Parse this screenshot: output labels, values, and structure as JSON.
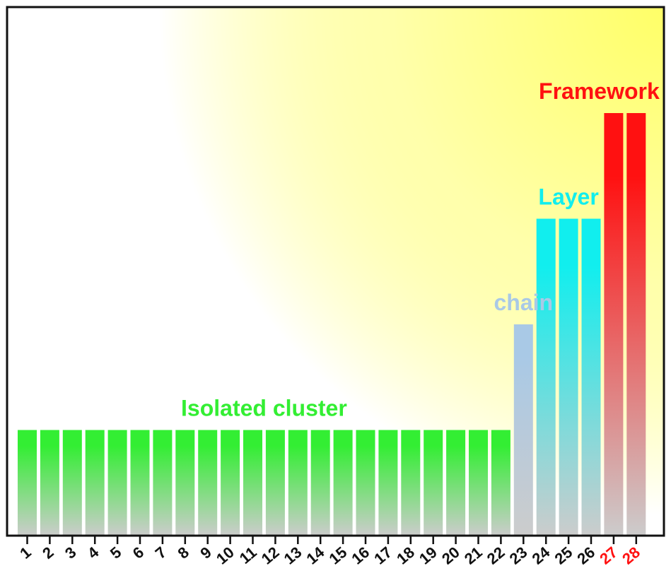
{
  "chart_data": {
    "type": "bar",
    "title": "",
    "xlabel": "",
    "ylabel": "",
    "ylim": [
      0,
      5
    ],
    "grid": false,
    "categories": [
      "1",
      "2",
      "3",
      "4",
      "5",
      "6",
      "7",
      "8",
      "9",
      "10",
      "11",
      "12",
      "13",
      "14",
      "15",
      "16",
      "17",
      "18",
      "19",
      "20",
      "21",
      "22",
      "23",
      "24",
      "25",
      "26",
      "27",
      "28"
    ],
    "values": [
      1,
      1,
      1,
      1,
      1,
      1,
      1,
      1,
      1,
      1,
      1,
      1,
      1,
      1,
      1,
      1,
      1,
      1,
      1,
      1,
      1,
      1,
      2,
      3,
      3,
      3,
      4,
      4
    ],
    "groups": [
      {
        "label": "Isolated cluster",
        "color": "#33ee33",
        "start": 1,
        "end": 22
      },
      {
        "label": "chain",
        "color": "#a9c9e6",
        "start": 23,
        "end": 23
      },
      {
        "label": "Layer",
        "color": "#11eeee",
        "start": 24,
        "end": 26
      },
      {
        "label": "Framework",
        "color": "#ff1111",
        "start": 27,
        "end": 28
      }
    ],
    "tick_label_colors": {
      "default": "#111111",
      "highlight": "#ff1111",
      "highlight_categories": [
        "27",
        "28"
      ]
    },
    "background_gradient": {
      "from": "#ffffff",
      "to": "#ffff66"
    }
  }
}
